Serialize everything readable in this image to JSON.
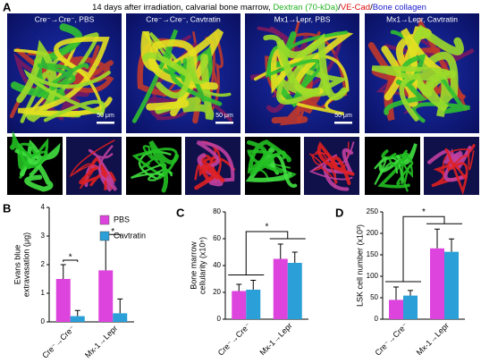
{
  "panel_a": {
    "letter": "A",
    "title": [
      {
        "text": "14 days after irradiation, calvarial bone marrow, ",
        "color": "#000000"
      },
      {
        "text": "Dextran (70-kDa)",
        "color": "#22b422"
      },
      {
        "text": "/",
        "color": "#000000"
      },
      {
        "text": "VE-Cad",
        "color": "#e01010"
      },
      {
        "text": "/",
        "color": "#000000"
      },
      {
        "text": "Bone collagen",
        "color": "#1a1ad0"
      }
    ],
    "images": [
      {
        "label": "Cre⁻→Cre⁻, PBS",
        "scale_bar": "50 μm"
      },
      {
        "label": "Cre⁻→Cre⁻, Cavtratin",
        "scale_bar": "50 μm"
      },
      {
        "label": "Mx1→Lepr, PBS",
        "scale_bar": "50 μm"
      },
      {
        "label": "Mx1→Lepr, Cavtratin"
      }
    ]
  },
  "chart_data": [
    {
      "type": "bar",
      "letter": "B",
      "ylabel": [
        "Evans blue",
        "extravasation (μg)"
      ],
      "categories": [
        "Cre⁻→Cre⁻",
        "Mx-1→Lepr"
      ],
      "ylim": [
        0,
        4
      ],
      "yticks": [
        0,
        1,
        2,
        3,
        4
      ],
      "legend": "upper right",
      "series": [
        {
          "name": "PBS",
          "color": "#dd44dd",
          "values": [
            1.5,
            1.8
          ],
          "errors": [
            0.5,
            1.1
          ]
        },
        {
          "name": "Cavtratin",
          "color": "#2a9fd8",
          "values": [
            0.2,
            0.3
          ],
          "errors": [
            0.2,
            0.5
          ]
        }
      ],
      "significance": {
        "type": "within",
        "labels": [
          "*",
          "*"
        ]
      }
    },
    {
      "type": "bar",
      "letter": "C",
      "ylabel": [
        "Bone marrow",
        "cellularity (x10⁶)"
      ],
      "categories": [
        "Cre⁻→Cre⁻",
        "Mx-1→Lepr"
      ],
      "ylim": [
        0,
        80
      ],
      "yticks": [
        0,
        20,
        40,
        60,
        80
      ],
      "series": [
        {
          "color": "#dd44dd",
          "values": [
            21,
            45
          ],
          "errors": [
            5,
            11
          ]
        },
        {
          "color": "#2a9fd8",
          "values": [
            22,
            42
          ],
          "errors": [
            7,
            8
          ]
        }
      ],
      "significance": {
        "type": "between",
        "label": "*"
      }
    },
    {
      "type": "bar",
      "letter": "D",
      "ylabel": [
        "LSK cell number (x10³)"
      ],
      "categories": [
        "Cre⁻→Cre⁻",
        "Mx-1→Lepr"
      ],
      "ylim": [
        0,
        250
      ],
      "yticks": [
        0,
        50,
        100,
        150,
        200,
        250
      ],
      "series": [
        {
          "color": "#dd44dd",
          "values": [
            45,
            165
          ],
          "errors": [
            30,
            45
          ]
        },
        {
          "color": "#2a9fd8",
          "values": [
            55,
            157
          ],
          "errors": [
            12,
            30
          ]
        }
      ],
      "significance": {
        "type": "between",
        "label": "*"
      }
    }
  ]
}
